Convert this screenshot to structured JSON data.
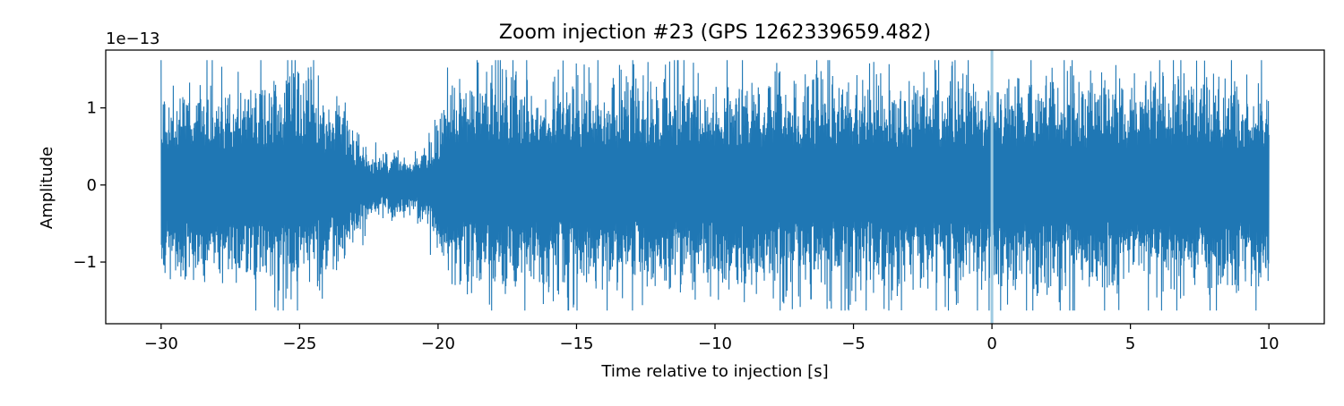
{
  "chart_data": {
    "type": "line",
    "title": "Zoom injection #23 (GPS 1262339659.482)",
    "xlabel": "Time relative to injection [s]",
    "ylabel": "Amplitude",
    "y_offset_label": "1e−13",
    "xlim": [
      -32,
      12
    ],
    "ylim": [
      -1.8,
      1.75
    ],
    "x_ticks": [
      -30,
      -25,
      -20,
      -15,
      -10,
      -5,
      0,
      5,
      10
    ],
    "x_tick_labels": [
      "−30",
      "−25",
      "−20",
      "−15",
      "−10",
      "−5",
      "0",
      "5",
      "10"
    ],
    "y_ticks": [
      -1,
      0,
      1
    ],
    "y_tick_labels": [
      "−1",
      "0",
      "1"
    ],
    "grid": false,
    "series": [
      {
        "color": "#1f77b4",
        "x_range": [
          -30,
          10
        ],
        "typical_envelope_x": [
          -30,
          -28,
          -26,
          -25,
          -24,
          -23.5,
          -23,
          -22.5,
          -22,
          -21,
          -20.5,
          -20,
          -19.5,
          -19,
          -18.5,
          -15,
          -10,
          -5,
          0,
          5,
          10
        ],
        "typical_envelope_y": [
          0.98,
          1.0,
          1.02,
          1.15,
          0.92,
          0.75,
          0.55,
          0.35,
          0.28,
          0.3,
          0.42,
          0.65,
          0.9,
          1.02,
          1.05,
          1.05,
          1.05,
          1.05,
          1.05,
          1.05,
          1.05
        ],
        "peak_min": -1.63,
        "peak_max": 1.62
      }
    ],
    "vertical_line": {
      "x": 0,
      "color": "#9ecae1"
    }
  }
}
